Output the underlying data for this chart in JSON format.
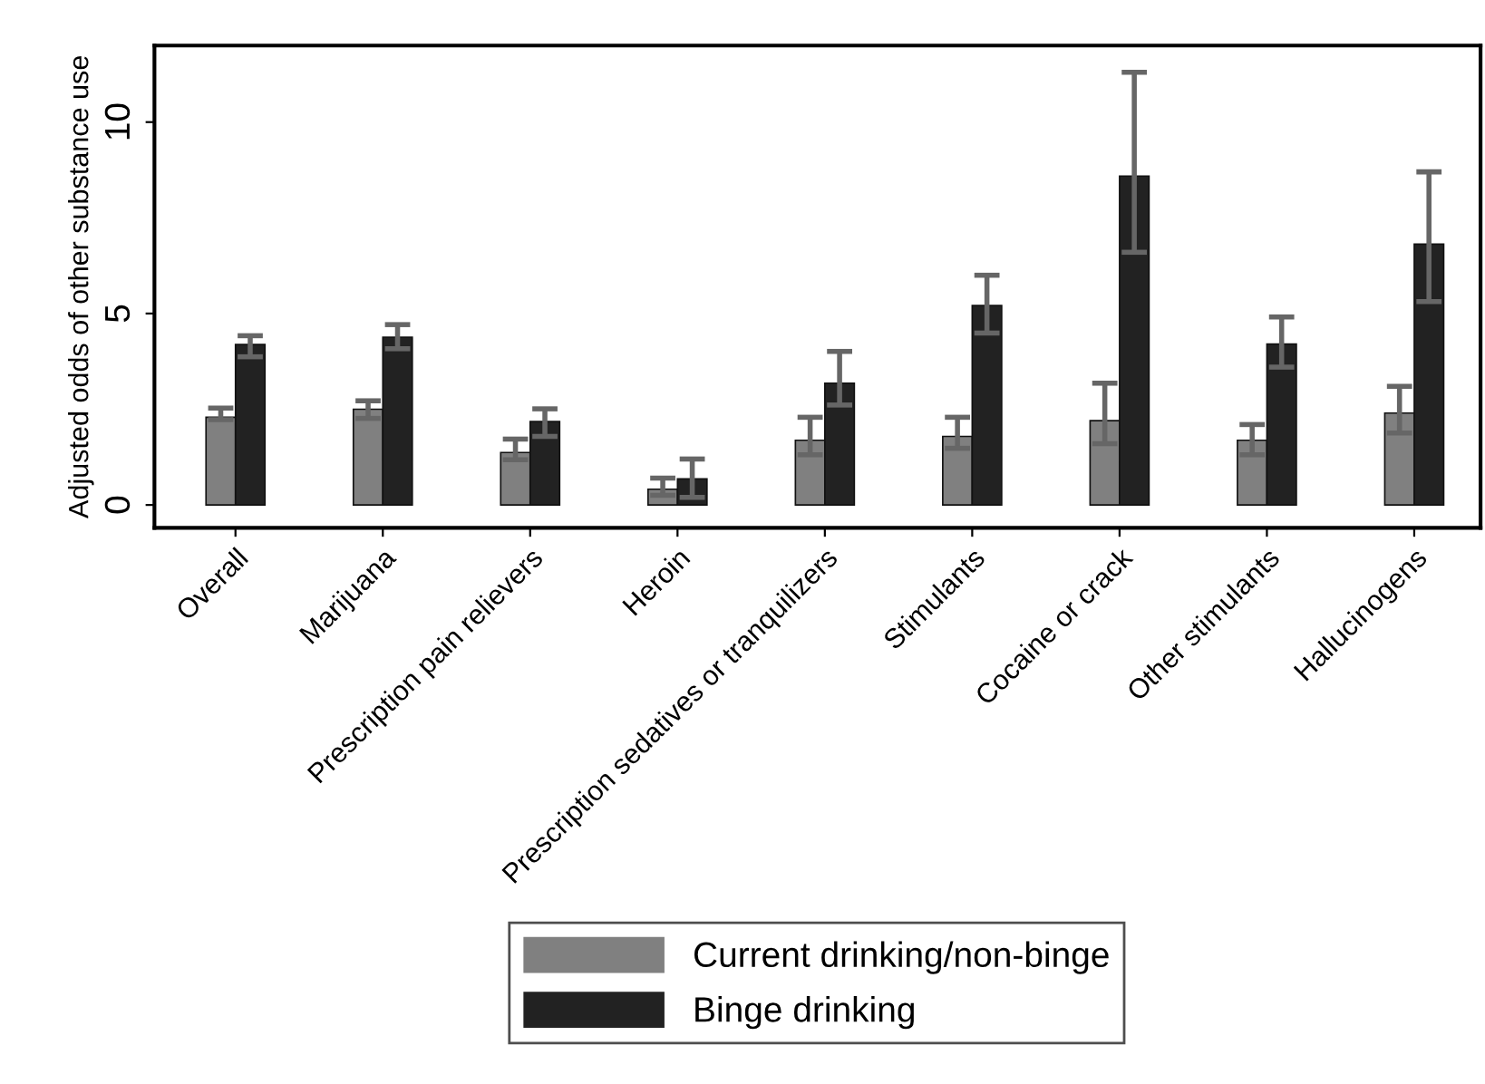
{
  "chart_data": {
    "type": "bar",
    "ylabel": "Adjusted odds of other substance use",
    "categories": [
      "Overall",
      "Marijuana",
      "Prescription pain relievers",
      "Heroin",
      "Prescription sedatives or tranquilizers",
      "Stimulants",
      "Cocaine or crack",
      "Other stimulants",
      "Hallucinogens"
    ],
    "series": [
      {
        "name": "Current drinking/non-binge",
        "color": "#808080",
        "values": [
          2.29,
          2.5,
          1.37,
          0.41,
          1.69,
          1.79,
          2.2,
          1.69,
          2.4
        ],
        "errors": [
          [
            2.23,
            2.53
          ],
          [
            2.26,
            2.72
          ],
          [
            1.18,
            1.72
          ],
          [
            0.25,
            0.7
          ],
          [
            1.31,
            2.29
          ],
          [
            1.48,
            2.29
          ],
          [
            1.6,
            3.18
          ],
          [
            1.31,
            2.1
          ],
          [
            1.88,
            3.1
          ]
        ]
      },
      {
        "name": "Binge drinking",
        "color": "#222222",
        "values": [
          4.19,
          4.38,
          2.18,
          0.68,
          3.18,
          5.21,
          8.59,
          4.2,
          6.81
        ],
        "errors": [
          [
            3.87,
            4.42
          ],
          [
            4.08,
            4.71
          ],
          [
            1.79,
            2.51
          ],
          [
            0.2,
            1.2
          ],
          [
            2.61,
            4.01
          ],
          [
            4.49,
            6.0
          ],
          [
            6.6,
            11.3
          ],
          [
            3.6,
            4.91
          ],
          [
            5.31,
            8.7
          ]
        ]
      }
    ],
    "ylim": [
      -0.6,
      12
    ],
    "yticks": [
      0,
      5,
      10
    ],
    "grid": false,
    "legend": "bottom"
  }
}
